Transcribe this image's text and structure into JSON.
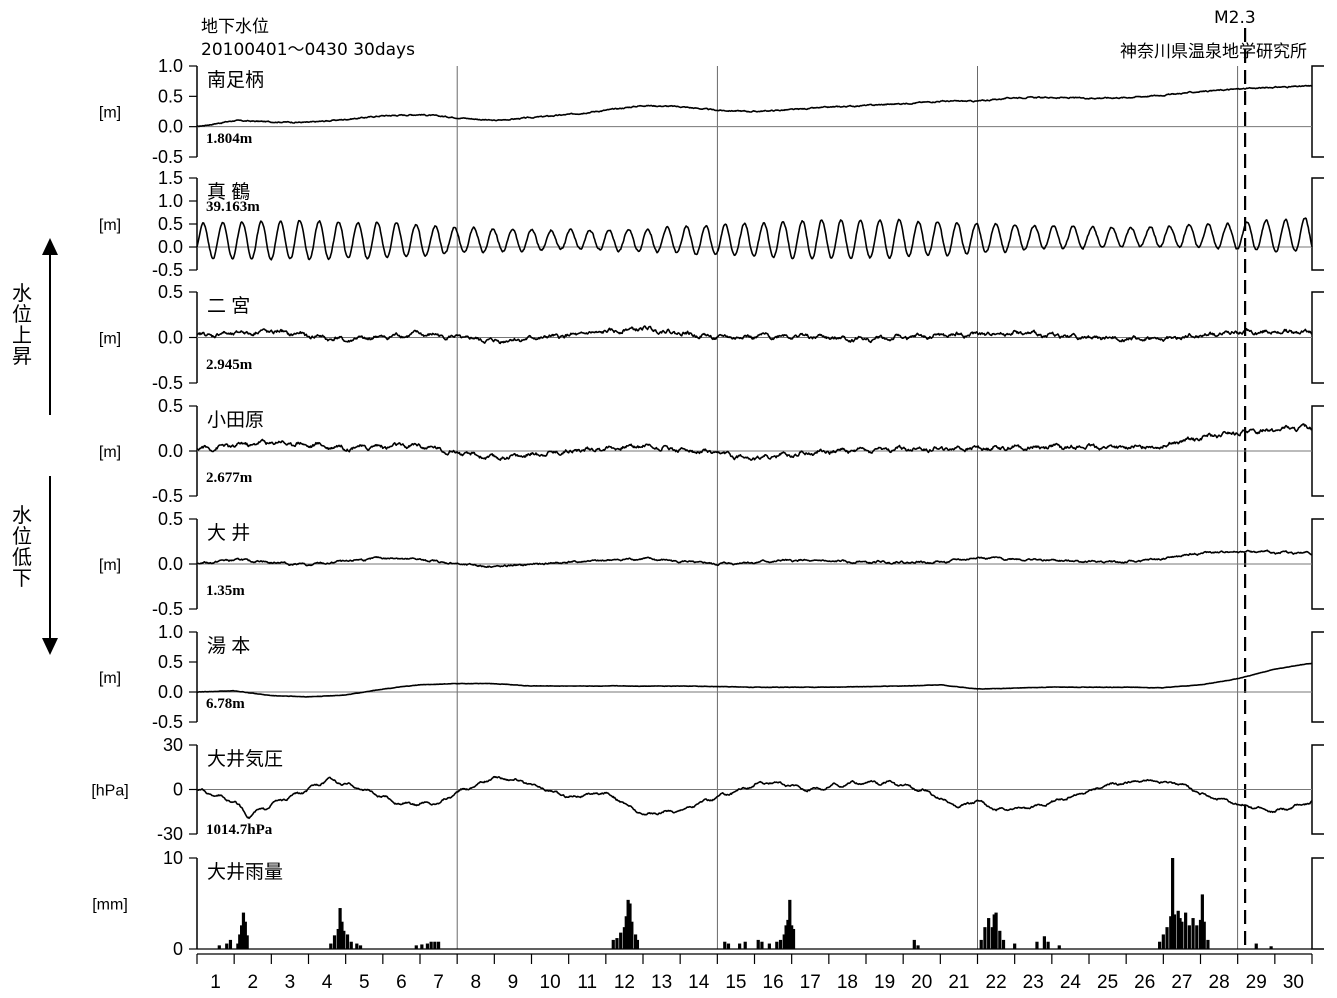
{
  "header": {
    "title": "地下水位",
    "period": "20100401～0430 30days",
    "institute": "神奈川県温泉地学研究所",
    "event": "M2.3"
  },
  "side_labels": {
    "rise": "水位上昇",
    "fall": "水位低下"
  },
  "chart_data": {
    "type": "line",
    "x_range": [
      1,
      31
    ],
    "x_ticks": [
      "1",
      "2",
      "3",
      "4",
      "5",
      "6",
      "7",
      "8",
      "9",
      "10",
      "11",
      "12",
      "13",
      "14",
      "15",
      "16",
      "17",
      "18",
      "19",
      "20",
      "21",
      "22",
      "23",
      "24",
      "25",
      "26",
      "27",
      "28",
      "29",
      "30"
    ],
    "weekly_gridlines_day": [
      8,
      15,
      22,
      29
    ],
    "event_line_day": 29.2,
    "panels": [
      {
        "name": "南足柄",
        "unit": "[m]",
        "baseline": "1.804m",
        "ylim": [
          -0.5,
          1.0
        ],
        "y_ticks": [
          "1.0",
          "0.5",
          "0.0",
          "-0.5"
        ],
        "trend": [
          [
            1,
            0.0
          ],
          [
            2,
            0.1
          ],
          [
            3,
            0.08
          ],
          [
            4,
            0.07
          ],
          [
            5,
            0.12
          ],
          [
            6,
            0.18
          ],
          [
            7,
            0.2
          ],
          [
            8,
            0.15
          ],
          [
            9,
            0.1
          ],
          [
            10,
            0.15
          ],
          [
            11,
            0.2
          ],
          [
            12,
            0.27
          ],
          [
            13,
            0.35
          ],
          [
            14,
            0.33
          ],
          [
            15,
            0.27
          ],
          [
            16,
            0.25
          ],
          [
            17,
            0.28
          ],
          [
            18,
            0.32
          ],
          [
            19,
            0.35
          ],
          [
            20,
            0.38
          ],
          [
            21,
            0.42
          ],
          [
            22,
            0.42
          ],
          [
            23,
            0.48
          ],
          [
            24,
            0.48
          ],
          [
            25,
            0.47
          ],
          [
            26,
            0.48
          ],
          [
            27,
            0.52
          ],
          [
            28,
            0.58
          ],
          [
            29,
            0.62
          ],
          [
            30,
            0.65
          ],
          [
            31,
            0.67
          ]
        ],
        "noise": 0.012,
        "osc_amp": 0
      },
      {
        "name": "真 鶴",
        "unit": "[m]",
        "baseline": "39.163m",
        "ylim": [
          -0.5,
          1.5
        ],
        "y_ticks": [
          "1.5",
          "1.0",
          "0.5",
          "0.0",
          "-0.5"
        ],
        "trend": [
          [
            1,
            0.15
          ],
          [
            15,
            0.15
          ],
          [
            31,
            0.25
          ]
        ],
        "noise": 0.03,
        "osc_amp": 0.42,
        "osc_period_days": 0.52
      },
      {
        "name": "二 宮",
        "unit": "[m]",
        "baseline": "2.945m",
        "ylim": [
          -0.5,
          0.5
        ],
        "y_ticks": [
          "0.5",
          "0.0",
          "-0.5"
        ],
        "trend": [
          [
            1,
            0.02
          ],
          [
            3,
            0.07
          ],
          [
            5,
            -0.03
          ],
          [
            7,
            0.04
          ],
          [
            9,
            -0.04
          ],
          [
            11,
            0.02
          ],
          [
            13,
            0.1
          ],
          [
            15,
            0.0
          ],
          [
            17,
            0.02
          ],
          [
            19,
            -0.02
          ],
          [
            21,
            0.02
          ],
          [
            23,
            0.05
          ],
          [
            25,
            0.0
          ],
          [
            27,
            -0.02
          ],
          [
            29,
            0.06
          ],
          [
            31,
            0.06
          ]
        ],
        "noise": 0.025,
        "osc_amp": 0.018,
        "osc_period_days": 0.52
      },
      {
        "name": "小田原",
        "unit": "[m]",
        "baseline": "2.677m",
        "ylim": [
          -0.5,
          0.5
        ],
        "y_ticks": [
          "0.5",
          "0.0",
          "-0.5"
        ],
        "trend": [
          [
            1,
            0.02
          ],
          [
            3,
            0.1
          ],
          [
            5,
            0.04
          ],
          [
            7,
            0.06
          ],
          [
            8,
            -0.02
          ],
          [
            9,
            -0.08
          ],
          [
            11,
            0.0
          ],
          [
            13,
            0.06
          ],
          [
            15,
            -0.03
          ],
          [
            16,
            -0.08
          ],
          [
            18,
            0.0
          ],
          [
            20,
            0.02
          ],
          [
            22,
            0.03
          ],
          [
            24,
            0.05
          ],
          [
            26,
            0.04
          ],
          [
            27,
            0.06
          ],
          [
            28,
            0.15
          ],
          [
            29,
            0.2
          ],
          [
            30,
            0.24
          ],
          [
            31,
            0.26
          ]
        ],
        "noise": 0.025,
        "osc_amp": 0.02,
        "osc_period_days": 0.52
      },
      {
        "name": "大 井",
        "unit": "[m]",
        "baseline": "1.35m",
        "ylim": [
          -0.5,
          0.5
        ],
        "y_ticks": [
          "0.5",
          "0.0",
          "-0.5"
        ],
        "trend": [
          [
            1,
            0.0
          ],
          [
            2,
            0.05
          ],
          [
            4,
            -0.01
          ],
          [
            6,
            0.07
          ],
          [
            7,
            0.05
          ],
          [
            8,
            0.0
          ],
          [
            9,
            -0.03
          ],
          [
            11,
            0.02
          ],
          [
            13,
            0.06
          ],
          [
            15,
            0.0
          ],
          [
            17,
            0.04
          ],
          [
            19,
            0.02
          ],
          [
            21,
            0.02
          ],
          [
            22,
            0.07
          ],
          [
            24,
            0.04
          ],
          [
            26,
            0.02
          ],
          [
            27,
            0.06
          ],
          [
            28,
            0.12
          ],
          [
            29,
            0.14
          ],
          [
            31,
            0.12
          ]
        ],
        "noise": 0.012,
        "osc_amp": 0.008,
        "osc_period_days": 0.52
      },
      {
        "name": "湯 本",
        "unit": "[m]",
        "baseline": "6.78m",
        "ylim": [
          -0.5,
          1.0
        ],
        "y_ticks": [
          "1.0",
          "0.5",
          "0.0",
          "-0.5"
        ],
        "trend": [
          [
            1,
            0.0
          ],
          [
            2,
            0.02
          ],
          [
            3,
            -0.06
          ],
          [
            4,
            -0.08
          ],
          [
            5,
            -0.05
          ],
          [
            6,
            0.05
          ],
          [
            7,
            0.12
          ],
          [
            8,
            0.14
          ],
          [
            9,
            0.14
          ],
          [
            10,
            0.1
          ],
          [
            12,
            0.1
          ],
          [
            14,
            0.1
          ],
          [
            16,
            0.08
          ],
          [
            18,
            0.08
          ],
          [
            20,
            0.1
          ],
          [
            21,
            0.12
          ],
          [
            22,
            0.05
          ],
          [
            24,
            0.08
          ],
          [
            26,
            0.08
          ],
          [
            27,
            0.07
          ],
          [
            28,
            0.12
          ],
          [
            29,
            0.22
          ],
          [
            30,
            0.38
          ],
          [
            31,
            0.48
          ]
        ],
        "noise": 0.004,
        "osc_amp": 0
      },
      {
        "name": "大井気圧",
        "unit": "[hPa]",
        "baseline": "1014.7hPa",
        "ylim": [
          -30,
          30
        ],
        "y_ticks": [
          "30",
          "0",
          "-30"
        ],
        "trend": [
          [
            1,
            0
          ],
          [
            2,
            -8
          ],
          [
            2.4,
            -18
          ],
          [
            3,
            -10
          ],
          [
            4,
            0
          ],
          [
            4.5,
            7
          ],
          [
            5.5,
            0
          ],
          [
            6.5,
            -10
          ],
          [
            7.5,
            -9
          ],
          [
            8,
            -2
          ],
          [
            9,
            8
          ],
          [
            9.5,
            7
          ],
          [
            11,
            -5
          ],
          [
            12,
            -2
          ],
          [
            13,
            -17
          ],
          [
            14,
            -14
          ],
          [
            15,
            -5
          ],
          [
            16,
            3
          ],
          [
            16.5,
            5
          ],
          [
            17.5,
            0
          ],
          [
            18.5,
            4
          ],
          [
            19.5,
            5
          ],
          [
            20.5,
            0
          ],
          [
            21.5,
            -12
          ],
          [
            22,
            -7
          ],
          [
            22.5,
            -14
          ],
          [
            23.5,
            -12
          ],
          [
            24.5,
            -5
          ],
          [
            25.5,
            3
          ],
          [
            26.5,
            6
          ],
          [
            27.5,
            4
          ],
          [
            28,
            -3
          ],
          [
            29,
            -10
          ],
          [
            30,
            -15
          ],
          [
            31,
            -8
          ]
        ],
        "noise": 0.8,
        "osc_amp": 1.0,
        "osc_period_days": 0.5
      },
      {
        "name": "大井雨量",
        "unit": "[mm]",
        "baseline": "",
        "ylim": [
          0,
          10
        ],
        "y_ticks": [
          "10",
          "0"
        ],
        "bars": [
          [
            1.6,
            0.4
          ],
          [
            1.8,
            0.6
          ],
          [
            1.9,
            1.0
          ],
          [
            2.1,
            0.6
          ],
          [
            2.15,
            1.6
          ],
          [
            2.2,
            2.6
          ],
          [
            2.25,
            4.0
          ],
          [
            2.3,
            3.0
          ],
          [
            2.35,
            1.5
          ],
          [
            4.6,
            0.6
          ],
          [
            4.7,
            1.5
          ],
          [
            4.8,
            2.2
          ],
          [
            4.85,
            4.5
          ],
          [
            4.9,
            3.0
          ],
          [
            4.95,
            2.0
          ],
          [
            5.05,
            1.6
          ],
          [
            5.15,
            0.8
          ],
          [
            5.3,
            0.6
          ],
          [
            5.4,
            0.4
          ],
          [
            6.9,
            0.4
          ],
          [
            7.05,
            0.5
          ],
          [
            7.2,
            0.6
          ],
          [
            7.3,
            0.8
          ],
          [
            7.4,
            0.8
          ],
          [
            7.5,
            0.8
          ],
          [
            12.2,
            1.0
          ],
          [
            12.3,
            1.2
          ],
          [
            12.4,
            1.8
          ],
          [
            12.5,
            2.4
          ],
          [
            12.55,
            3.6
          ],
          [
            12.6,
            5.4
          ],
          [
            12.65,
            5.0
          ],
          [
            12.7,
            3.0
          ],
          [
            12.8,
            1.6
          ],
          [
            12.85,
            1.0
          ],
          [
            15.2,
            0.8
          ],
          [
            15.3,
            0.6
          ],
          [
            15.6,
            0.6
          ],
          [
            15.75,
            0.8
          ],
          [
            16.1,
            1.0
          ],
          [
            16.2,
            0.8
          ],
          [
            16.4,
            0.6
          ],
          [
            16.6,
            0.8
          ],
          [
            16.7,
            1.0
          ],
          [
            16.8,
            1.6
          ],
          [
            16.85,
            2.6
          ],
          [
            16.9,
            3.2
          ],
          [
            16.95,
            5.4
          ],
          [
            17.0,
            2.6
          ],
          [
            17.05,
            2.2
          ],
          [
            20.3,
            1.0
          ],
          [
            20.4,
            0.4
          ],
          [
            22.1,
            1.0
          ],
          [
            22.2,
            2.4
          ],
          [
            22.3,
            3.4
          ],
          [
            22.4,
            2.4
          ],
          [
            22.45,
            3.8
          ],
          [
            22.5,
            4.0
          ],
          [
            22.6,
            2.0
          ],
          [
            22.7,
            1.0
          ],
          [
            23.0,
            0.6
          ],
          [
            23.6,
            0.8
          ],
          [
            23.8,
            1.4
          ],
          [
            23.9,
            0.8
          ],
          [
            24.2,
            0.4
          ],
          [
            26.9,
            0.8
          ],
          [
            27.0,
            1.6
          ],
          [
            27.1,
            2.4
          ],
          [
            27.2,
            3.6
          ],
          [
            27.25,
            10.0
          ],
          [
            27.3,
            3.8
          ],
          [
            27.4,
            4.2
          ],
          [
            27.45,
            3.4
          ],
          [
            27.5,
            3.0
          ],
          [
            27.6,
            4.0
          ],
          [
            27.7,
            2.6
          ],
          [
            27.8,
            3.4
          ],
          [
            27.9,
            2.6
          ],
          [
            28.0,
            3.2
          ],
          [
            28.05,
            6.0
          ],
          [
            28.1,
            3.0
          ],
          [
            28.2,
            1.0
          ],
          [
            29.5,
            0.6
          ],
          [
            29.9,
            0.3
          ]
        ]
      }
    ]
  }
}
